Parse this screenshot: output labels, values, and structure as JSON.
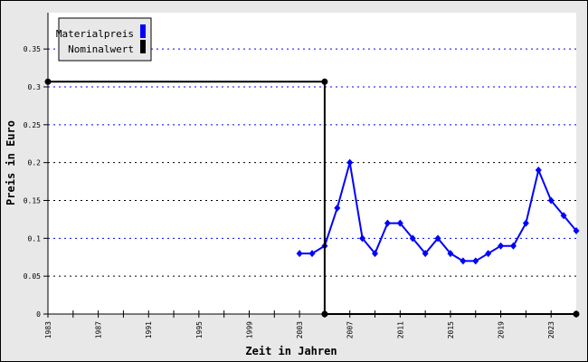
{
  "chart_data": {
    "type": "line",
    "title": "",
    "xlabel": "Zeit in Jahren",
    "ylabel": "Preis in Euro",
    "xlim": [
      1983,
      2025
    ],
    "ylim": [
      0,
      0.39
    ],
    "x_ticks": [
      1983,
      1985,
      1987,
      1989,
      1991,
      1993,
      1995,
      1997,
      1999,
      2001,
      2003,
      2005,
      2007,
      2009,
      2011,
      2013,
      2015,
      2017,
      2019,
      2021,
      2023,
      2025
    ],
    "x_tick_labels": [
      "1983",
      "1987",
      "1991",
      "1995",
      "1999",
      "2003",
      "2007",
      "2011",
      "2015",
      "2019",
      "2023"
    ],
    "y_ticks": [
      "0",
      "0.05",
      "0.1",
      "0.15",
      "0.2",
      "0.25",
      "0.3",
      "0.35"
    ],
    "grid": true,
    "legend_placement": "top-left",
    "series": [
      {
        "name": "Materialpreis",
        "color": "#0000ff",
        "x": [
          2003,
          2004,
          2005,
          2006,
          2007,
          2008,
          2009,
          2010,
          2011,
          2012,
          2013,
          2014,
          2015,
          2016,
          2017,
          2018,
          2019,
          2020,
          2021,
          2022,
          2023,
          2024,
          2025
        ],
        "y": [
          0.08,
          0.08,
          0.09,
          0.14,
          0.2,
          0.1,
          0.08,
          0.12,
          0.12,
          0.1,
          0.08,
          0.1,
          0.08,
          0.07,
          0.07,
          0.08,
          0.09,
          0.09,
          0.12,
          0.19,
          0.15,
          0.13,
          0.11
        ]
      },
      {
        "name": "Nominalwert",
        "color": "#000000",
        "x": [
          1983,
          2005,
          2005,
          2025
        ],
        "y": [
          0.3068,
          0.3068,
          0,
          0
        ]
      }
    ]
  }
}
